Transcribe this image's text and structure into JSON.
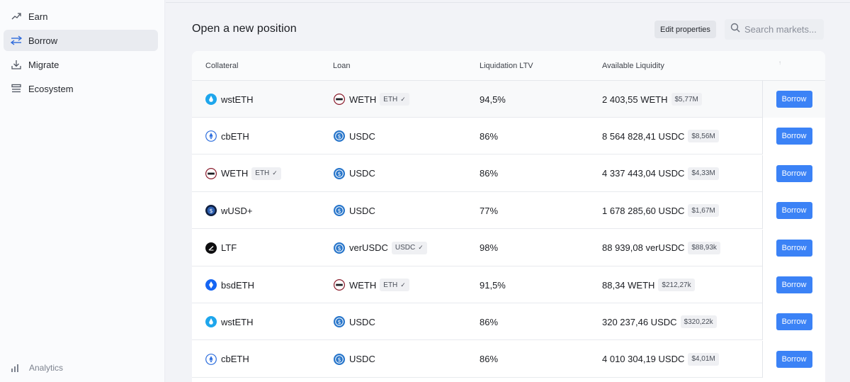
{
  "sidebar": {
    "items": [
      {
        "label": "Earn",
        "icon": "trending-up-icon"
      },
      {
        "label": "Borrow",
        "icon": "arrows-swap-icon",
        "active": true
      },
      {
        "label": "Migrate",
        "icon": "download-icon"
      },
      {
        "label": "Ecosystem",
        "icon": "layers-icon"
      }
    ],
    "analytics_label": "Analytics"
  },
  "main": {
    "title": "Open a new position",
    "edit_properties_label": "Edit properties",
    "search_placeholder": "Search markets..."
  },
  "table": {
    "headers": {
      "collateral": "Collateral",
      "loan": "Loan",
      "ltv": "Liquidation LTV",
      "liquidity": "Available Liquidity",
      "sort_marker": "↑"
    },
    "borrow_label": "Borrow",
    "rows": [
      {
        "collateral": "wstETH",
        "collateral_icon": "wsteth-icon",
        "collateral_tag": "",
        "loan": "WETH",
        "loan_icon": "weth-icon",
        "loan_tag": "ETH",
        "ltv": "94,5%",
        "liquidity": "2 403,55 WETH",
        "liquidity_usd": "$5,77M"
      },
      {
        "collateral": "cbETH",
        "collateral_icon": "cbeth-icon",
        "collateral_tag": "",
        "loan": "USDC",
        "loan_icon": "usdc-icon",
        "loan_tag": "",
        "ltv": "86%",
        "liquidity": "8 564 828,41 USDC",
        "liquidity_usd": "$8,56M"
      },
      {
        "collateral": "WETH",
        "collateral_icon": "weth-icon",
        "collateral_tag": "ETH",
        "loan": "USDC",
        "loan_icon": "usdc-icon",
        "loan_tag": "",
        "ltv": "86%",
        "liquidity": "4 337 443,04 USDC",
        "liquidity_usd": "$4,33M"
      },
      {
        "collateral": "wUSD+",
        "collateral_icon": "wusd-plus-icon",
        "collateral_tag": "",
        "loan": "USDC",
        "loan_icon": "usdc-icon",
        "loan_tag": "",
        "ltv": "77%",
        "liquidity": "1 678 285,60 USDC",
        "liquidity_usd": "$1,67M"
      },
      {
        "collateral": "LTF",
        "collateral_icon": "ltf-icon",
        "collateral_tag": "",
        "loan": "verUSDC",
        "loan_icon": "verusdc-icon",
        "loan_tag": "USDC",
        "ltv": "98%",
        "liquidity": "88 939,08 verUSDC",
        "liquidity_usd": "$88,93k"
      },
      {
        "collateral": "bsdETH",
        "collateral_icon": "bsdeth-icon",
        "collateral_tag": "",
        "loan": "WETH",
        "loan_icon": "weth-icon",
        "loan_tag": "ETH",
        "ltv": "91,5%",
        "liquidity": "88,34 WETH",
        "liquidity_usd": "$212,27k"
      },
      {
        "collateral": "wstETH",
        "collateral_icon": "wsteth-icon",
        "collateral_tag": "",
        "loan": "USDC",
        "loan_icon": "usdc-icon",
        "loan_tag": "",
        "ltv": "86%",
        "liquidity": "320 237,46 USDC",
        "liquidity_usd": "$320,22k"
      },
      {
        "collateral": "cbETH",
        "collateral_icon": "cbeth-icon",
        "collateral_tag": "",
        "loan": "USDC",
        "loan_icon": "usdc-icon",
        "loan_tag": "",
        "ltv": "86%",
        "liquidity": "4 010 304,19 USDC",
        "liquidity_usd": "$4,01M"
      }
    ]
  },
  "colors": {
    "accent": "#3b82f6",
    "active_nav_bg": "#e9ebf0",
    "usdc": "#2775ca",
    "wsteth": "#1ea6ec",
    "weth": "#8a1c2c",
    "bsdeth": "#1565f3"
  }
}
